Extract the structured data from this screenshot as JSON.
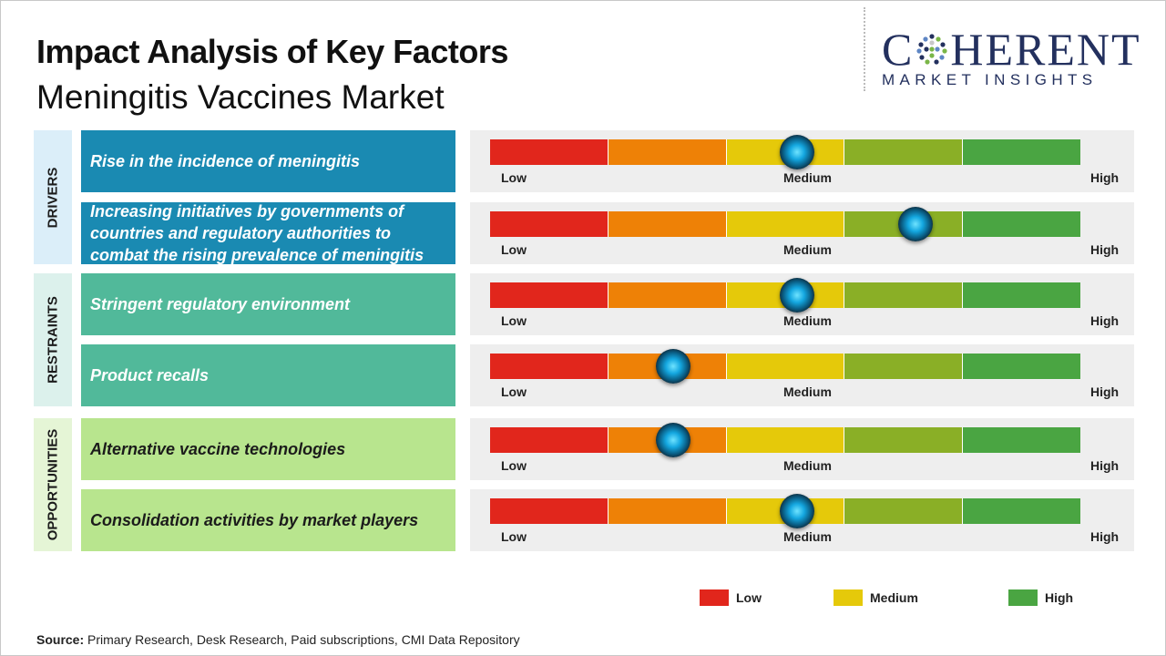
{
  "title": "Impact Analysis of Key Factors",
  "subtitle": "Meningitis Vaccines Market",
  "logo": {
    "main_pre": "C",
    "main_post": "HERENT",
    "sub": "MARKET INSIGHTS"
  },
  "colors": {
    "gauge": [
      "#e1261c",
      "#ee8106",
      "#e5c90a",
      "#8aaf26",
      "#4aa542"
    ],
    "categories": {
      "drivers": "#dbeef9",
      "restraints": "#dcf1ec",
      "opportunities": "#e5f5d6"
    },
    "factor_fill": {
      "drivers": "#1a8ab2",
      "restraints": "#51b99a",
      "opportunities": "#b8e58e"
    },
    "factor_text": {
      "drivers": "#ffffff",
      "restraints": "#ffffff",
      "opportunities": "#1b1b1b"
    }
  },
  "categories": [
    {
      "key": "drivers",
      "label": "DRIVERS"
    },
    {
      "key": "restraints",
      "label": "RESTRAINTS"
    },
    {
      "key": "opportunities",
      "label": "OPPORTUNITIES"
    }
  ],
  "chart_data": {
    "type": "gauge",
    "scale": [
      "Low",
      "Medium",
      "High"
    ],
    "factors": [
      {
        "category": "drivers",
        "label": "Rise in the incidence of meningitis",
        "impact": 0.52
      },
      {
        "category": "drivers",
        "label": "Increasing initiatives by governments of countries and regulatory authorities to combat the rising prevalence of meningitis",
        "impact": 0.72
      },
      {
        "category": "restraints",
        "label": "Stringent regulatory environment",
        "impact": 0.52
      },
      {
        "category": "restraints",
        "label": "Product recalls",
        "impact": 0.31
      },
      {
        "category": "opportunities",
        "label": "Alternative vaccine technologies",
        "impact": 0.31
      },
      {
        "category": "opportunities",
        "label": "Consolidation activities by market players",
        "impact": 0.52
      }
    ]
  },
  "legend": [
    {
      "label": "Low",
      "color": "#e1261c"
    },
    {
      "label": "Medium",
      "color": "#e5c90a"
    },
    {
      "label": "High",
      "color": "#4aa542"
    }
  ],
  "source": {
    "label": "Source:",
    "text": " Primary Research, Desk Research, Paid subscriptions, CMI Data Repository"
  }
}
